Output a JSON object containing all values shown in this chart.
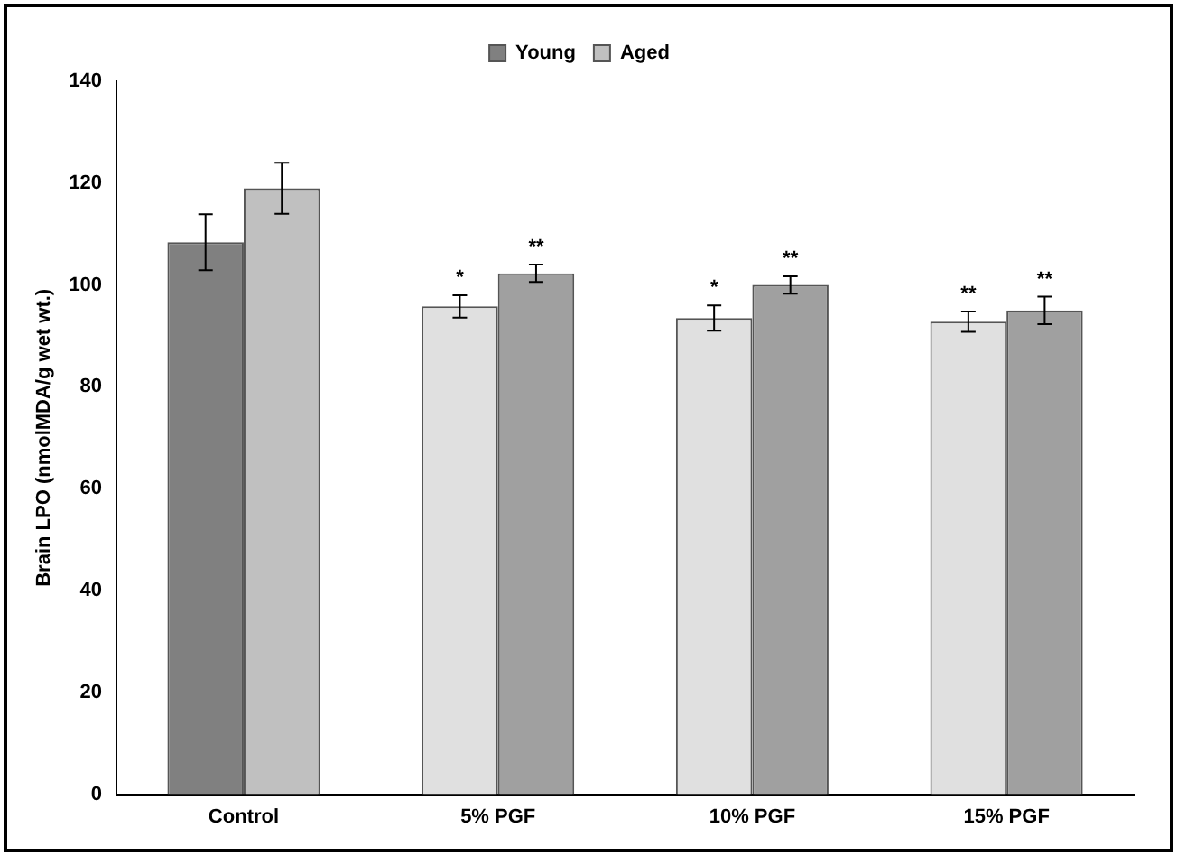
{
  "chart_data": {
    "type": "bar",
    "ylabel": "Brain LPO (nmolMDA/g wet wt.)",
    "categories": [
      "Control",
      "5% PGF",
      "10% PGF",
      "15% PGF"
    ],
    "series": [
      {
        "name": "Young",
        "color": "#808080",
        "colors": [
          "#808080",
          "#e0e0e0",
          "#e0e0e0",
          "#e0e0e0"
        ],
        "values": [
          108.4,
          95.8,
          93.5,
          92.8
        ],
        "errors": [
          5.5,
          2.2,
          2.5,
          2
        ],
        "value_labels": [
          null,
          "*",
          "*",
          "**"
        ]
      },
      {
        "name": "Aged",
        "color": "#c0c0c0",
        "colors": [
          "#c0c0c0",
          "#a0a0a0",
          "#a0a0a0",
          "#a0a0a0"
        ],
        "values": [
          119,
          102.3,
          100,
          95
        ],
        "errors": [
          5,
          1.7,
          1.7,
          2.7
        ],
        "value_labels": [
          null,
          "**",
          "**",
          "**"
        ]
      }
    ],
    "ylim": [
      0,
      140
    ],
    "yticks": [
      0,
      20,
      40,
      60,
      80,
      100,
      120,
      140
    ],
    "grid": false,
    "legend": "top"
  }
}
